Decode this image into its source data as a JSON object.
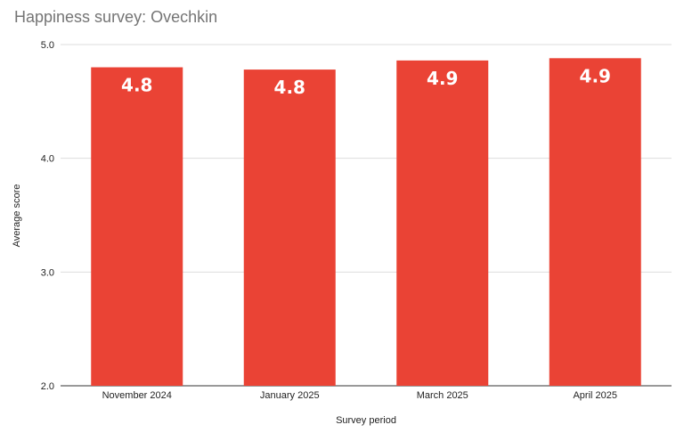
{
  "chart_data": {
    "type": "bar",
    "title": "Happiness survey: Ovechkin",
    "xlabel": "Survey period",
    "ylabel": "Average score",
    "categories": [
      "November 2024",
      "January 2025",
      "March 2025",
      "April 2025"
    ],
    "values": [
      4.8,
      4.78,
      4.86,
      4.88
    ],
    "data_labels": [
      "4.8",
      "4.8",
      "4.9",
      "4.9"
    ],
    "ylim": [
      2.0,
      5.0
    ],
    "yticks": [
      "2.0",
      "3.0",
      "4.0",
      "5.0"
    ],
    "grid": true,
    "legend": "none",
    "bar_color": "#ea4335"
  }
}
